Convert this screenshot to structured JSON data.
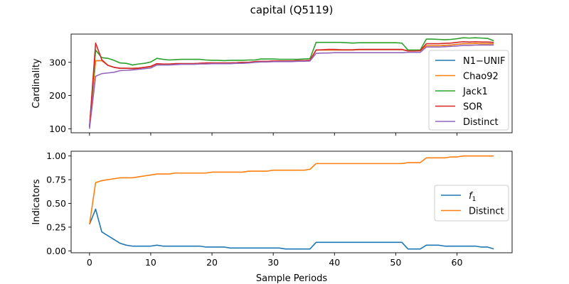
{
  "chart_data": {
    "suptitle": "capital (Q5119)",
    "xlabel": "Sample Periods",
    "x_ticks": [
      0,
      10,
      20,
      30,
      40,
      50,
      60
    ],
    "x_lim": [
      -3,
      69
    ],
    "panels": [
      {
        "type": "line",
        "ylabel": "Cardinality",
        "ylim": [
          88,
          385
        ],
        "y_ticks": [
          100,
          200,
          300
        ],
        "legend_position": "right",
        "series": [
          {
            "name": "N1−UNIF",
            "color": "#1f77b4",
            "values": [
              105,
              305,
              305,
              291,
              285,
              282,
              282,
              282,
              283,
              285,
              287,
              294,
              294,
              294,
              296,
              296,
              296,
              296,
              297,
              298,
              298,
              298,
              298,
              298,
              299,
              300,
              300,
              302,
              303,
              303,
              304,
              304,
              304,
              304,
              305,
              305,
              306,
              337,
              337,
              337,
              337,
              337,
              337,
              337,
              338,
              338,
              338,
              338,
              338,
              338,
              338,
              338,
              335,
              335,
              335,
              350,
              350,
              350,
              351,
              352,
              354,
              356,
              356,
              357,
              356,
              356,
              356
            ]
          },
          {
            "name": "Chao92",
            "color": "#ff7f0e",
            "values": [
              105,
              305,
              305,
              291,
              285,
              282,
              282,
              282,
              283,
              285,
              287,
              294,
              294,
              294,
              296,
              296,
              296,
              296,
              297,
              298,
              298,
              298,
              298,
              298,
              299,
              300,
              300,
              302,
              303,
              303,
              304,
              304,
              304,
              304,
              305,
              305,
              306,
              337,
              337,
              337,
              337,
              337,
              337,
              337,
              338,
              338,
              338,
              338,
              338,
              338,
              338,
              338,
              335,
              335,
              335,
              350,
              350,
              350,
              351,
              352,
              354,
              356,
              356,
              357,
              356,
              356,
              356
            ]
          },
          {
            "name": "Jack1",
            "color": "#2ca02c",
            "values": [
              106,
              337,
              314,
              312,
              306,
              298,
              297,
              292,
              295,
              297,
              301,
              312,
              309,
              307,
              308,
              309,
              309,
              309,
              309,
              307,
              306,
              306,
              305,
              306,
              306,
              306,
              307,
              307,
              310,
              310,
              310,
              309,
              309,
              309,
              309,
              310,
              311,
              360,
              360,
              360,
              360,
              360,
              359,
              358,
              359,
              359,
              359,
              359,
              359,
              359,
              359,
              358,
              337,
              337,
              337,
              370,
              370,
              369,
              368,
              369,
              371,
              374,
              373,
              374,
              373,
              372,
              365
            ]
          },
          {
            "name": "SOR",
            "color": "#d62728",
            "values": [
              105,
              358,
              308,
              291,
              285,
              282,
              282,
              281,
              282,
              285,
              288,
              296,
              295,
              295,
              296,
              296,
              296,
              296,
              297,
              298,
              298,
              298,
              298,
              298,
              299,
              300,
              300,
              302,
              303,
              303,
              304,
              304,
              304,
              304,
              305,
              305,
              306,
              337,
              338,
              339,
              339,
              338,
              338,
              338,
              339,
              339,
              339,
              339,
              339,
              339,
              339,
              339,
              334,
              334,
              335,
              356,
              356,
              356,
              357,
              358,
              360,
              362,
              361,
              362,
              361,
              361,
              360
            ]
          },
          {
            "name": "Distinct",
            "color": "#9467bd",
            "values": [
              100,
              258,
              266,
              268,
              270,
              275,
              276,
              277,
              279,
              281,
              283,
              292,
              292,
              292,
              293,
              294,
              294,
              294,
              295,
              295,
              296,
              296,
              296,
              296,
              297,
              297,
              298,
              300,
              301,
              301,
              302,
              302,
              302,
              302,
              303,
              303,
              304,
              327,
              328,
              328,
              329,
              329,
              329,
              329,
              329,
              329,
              329,
              329,
              329,
              329,
              329,
              329,
              330,
              330,
              330,
              346,
              346,
              346,
              347,
              348,
              349,
              351,
              351,
              352,
              352,
              352,
              352
            ]
          }
        ]
      },
      {
        "type": "line",
        "ylabel": "Indicators",
        "ylim": [
          -0.02,
          1.05
        ],
        "y_ticks": [
          0.0,
          0.25,
          0.5,
          0.75,
          1.0
        ],
        "y_tick_labels": [
          "0.00",
          "0.25",
          "0.50",
          "0.75",
          "1.00"
        ],
        "legend_position": "right",
        "series": [
          {
            "name": "f",
            "name_subscript": "1",
            "color": "#1f77b4",
            "values": [
              0.28,
              0.44,
              0.2,
              0.16,
              0.12,
              0.08,
              0.06,
              0.05,
              0.05,
              0.05,
              0.05,
              0.06,
              0.05,
              0.05,
              0.05,
              0.05,
              0.05,
              0.05,
              0.05,
              0.04,
              0.04,
              0.04,
              0.04,
              0.03,
              0.03,
              0.03,
              0.03,
              0.03,
              0.03,
              0.03,
              0.03,
              0.03,
              0.02,
              0.02,
              0.02,
              0.02,
              0.02,
              0.09,
              0.09,
              0.09,
              0.09,
              0.09,
              0.09,
              0.09,
              0.09,
              0.09,
              0.09,
              0.09,
              0.09,
              0.09,
              0.09,
              0.09,
              0.02,
              0.02,
              0.02,
              0.06,
              0.06,
              0.06,
              0.05,
              0.05,
              0.05,
              0.05,
              0.05,
              0.05,
              0.04,
              0.04,
              0.02
            ]
          },
          {
            "name": "Distinct",
            "color": "#ff7f0e",
            "values": [
              0.28,
              0.72,
              0.74,
              0.75,
              0.76,
              0.77,
              0.77,
              0.77,
              0.78,
              0.79,
              0.8,
              0.81,
              0.81,
              0.81,
              0.82,
              0.82,
              0.82,
              0.82,
              0.82,
              0.82,
              0.83,
              0.83,
              0.83,
              0.83,
              0.83,
              0.83,
              0.84,
              0.84,
              0.84,
              0.84,
              0.85,
              0.85,
              0.85,
              0.85,
              0.85,
              0.85,
              0.86,
              0.92,
              0.92,
              0.92,
              0.92,
              0.92,
              0.92,
              0.92,
              0.92,
              0.92,
              0.92,
              0.92,
              0.92,
              0.92,
              0.92,
              0.92,
              0.93,
              0.93,
              0.93,
              0.98,
              0.98,
              0.98,
              0.98,
              0.99,
              0.99,
              1.0,
              1.0,
              1.0,
              1.0,
              1.0,
              1.0
            ]
          }
        ]
      }
    ]
  }
}
